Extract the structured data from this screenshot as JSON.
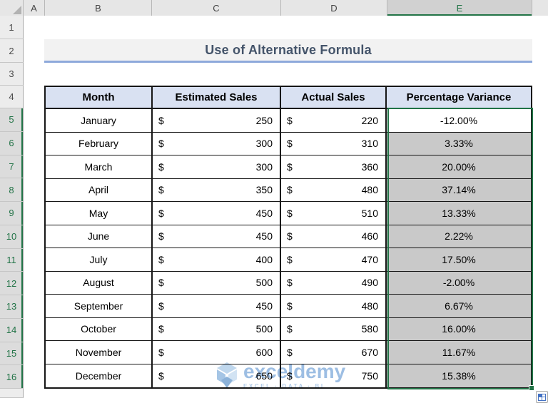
{
  "title": "Use of Alternative Formula",
  "grid": {
    "column_headers": [
      "A",
      "B",
      "C",
      "D",
      "E"
    ],
    "selected_column": "E",
    "row_headers": [
      "1",
      "2",
      "3",
      "4",
      "5",
      "6",
      "7",
      "8",
      "9",
      "10",
      "11",
      "12",
      "13",
      "14",
      "15",
      "16"
    ],
    "selected_rows": [
      5,
      6,
      7,
      8,
      9,
      10,
      11,
      12,
      13,
      14,
      15,
      16
    ]
  },
  "table": {
    "columns": [
      "Month",
      "Estimated Sales",
      "Actual Sales",
      "Percentage Variance"
    ],
    "currency": "$",
    "rows": [
      {
        "month": "January",
        "estimated": "250",
        "actual": "220",
        "variance": "-12.00%"
      },
      {
        "month": "February",
        "estimated": "300",
        "actual": "310",
        "variance": "3.33%"
      },
      {
        "month": "March",
        "estimated": "300",
        "actual": "360",
        "variance": "20.00%"
      },
      {
        "month": "April",
        "estimated": "350",
        "actual": "480",
        "variance": "37.14%"
      },
      {
        "month": "May",
        "estimated": "450",
        "actual": "510",
        "variance": "13.33%"
      },
      {
        "month": "June",
        "estimated": "450",
        "actual": "460",
        "variance": "2.22%"
      },
      {
        "month": "July",
        "estimated": "400",
        "actual": "470",
        "variance": "17.50%"
      },
      {
        "month": "August",
        "estimated": "500",
        "actual": "490",
        "variance": "-2.00%"
      },
      {
        "month": "September",
        "estimated": "450",
        "actual": "480",
        "variance": "6.67%"
      },
      {
        "month": "October",
        "estimated": "500",
        "actual": "580",
        "variance": "16.00%"
      },
      {
        "month": "November",
        "estimated": "600",
        "actual": "670",
        "variance": "11.67%"
      },
      {
        "month": "December",
        "estimated": "650",
        "actual": "750",
        "variance": "15.38%"
      }
    ]
  },
  "watermark": {
    "brand": "exceldemy",
    "tagline": "EXCEL · DATA · BI"
  },
  "colors": {
    "accent_green": "#217346",
    "table_header_fill": "#D9E1F2",
    "selection_fill": "#C9C9C9",
    "title_text": "#44546A",
    "title_underline": "#8EA9DB",
    "watermark_blue": "#85AEDC"
  }
}
